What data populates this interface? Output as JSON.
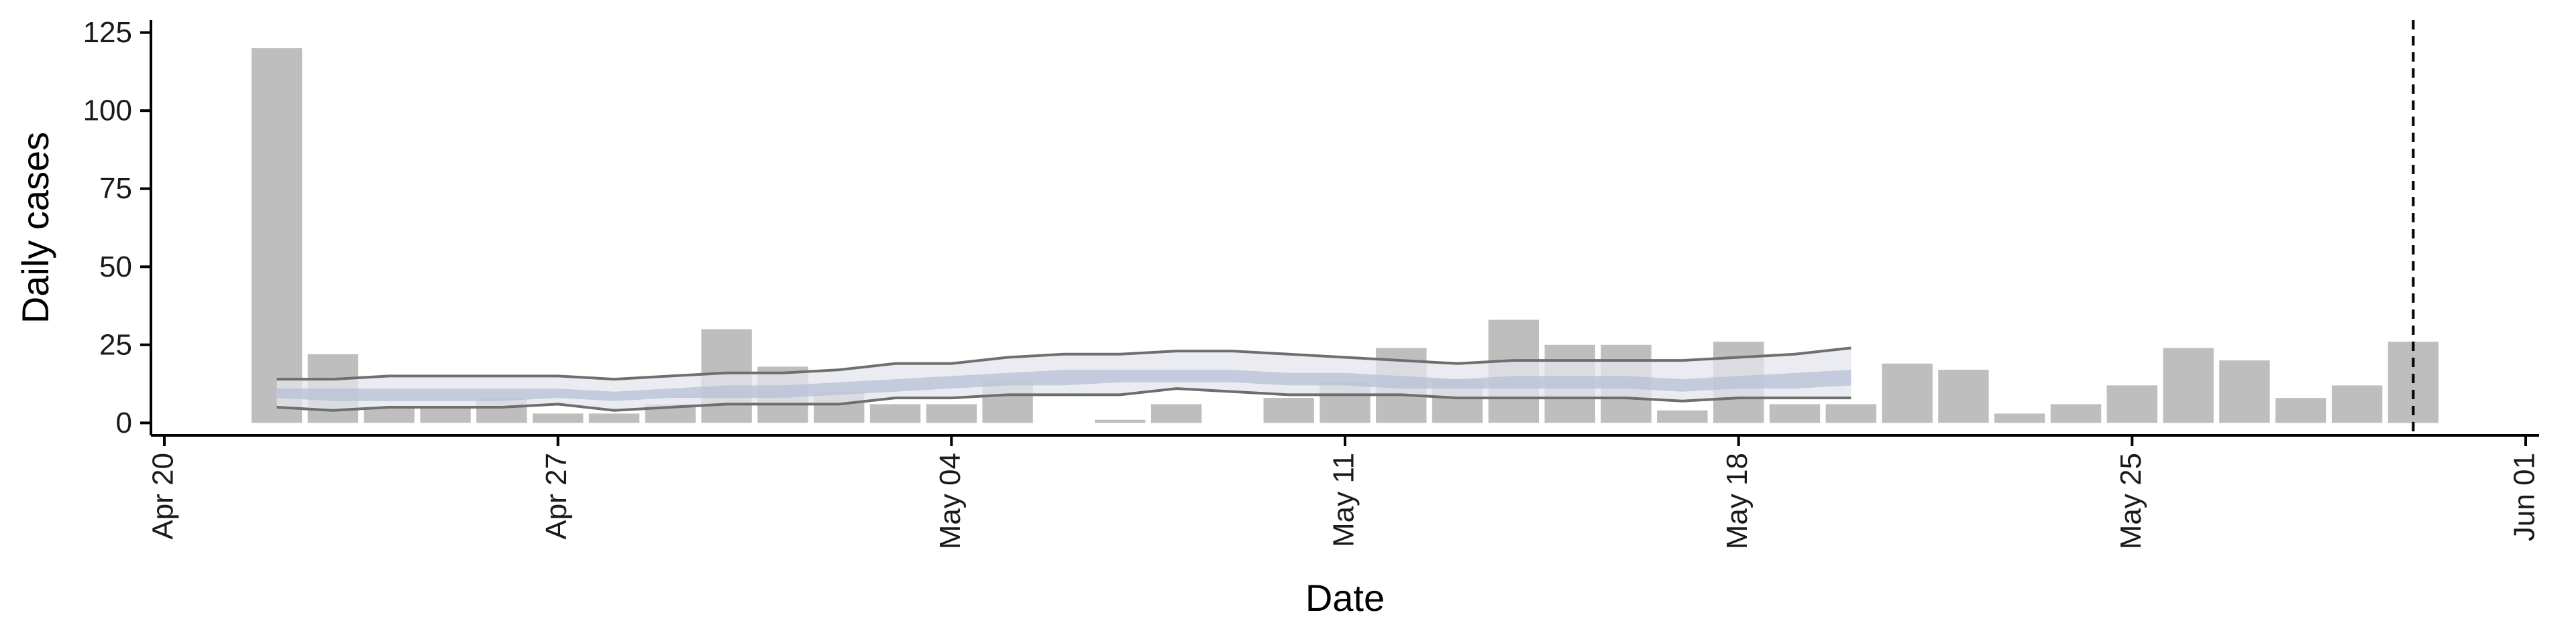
{
  "chart_data": {
    "type": "bar",
    "title": "",
    "xlabel": "Date",
    "ylabel": "Daily cases",
    "x_ticks": [
      "2020-04-20",
      "2020-04-27",
      "2020-05-04",
      "2020-05-11",
      "2020-05-18",
      "2020-05-25",
      "2020-06-01"
    ],
    "x_tick_labels": [
      "Apr 20",
      "Apr 27",
      "May 04",
      "May 11",
      "May 18",
      "May 25",
      "Jun 01"
    ],
    "y_ticks": [
      0,
      25,
      50,
      75,
      100,
      125
    ],
    "y_tick_labels": [
      "0",
      "25",
      "50",
      "75",
      "100",
      "125"
    ],
    "xlim": [
      "2020-04-20",
      "2020-06-01"
    ],
    "ylim": [
      0,
      125
    ],
    "grid": false,
    "legend": "none",
    "dashed_vline_date": "2020-05-30",
    "bars": {
      "dates": [
        "2020-04-22",
        "2020-04-23",
        "2020-04-24",
        "2020-04-25",
        "2020-04-26",
        "2020-04-27",
        "2020-04-28",
        "2020-04-29",
        "2020-04-30",
        "2020-05-01",
        "2020-05-02",
        "2020-05-03",
        "2020-05-04",
        "2020-05-05",
        "2020-05-06",
        "2020-05-07",
        "2020-05-08",
        "2020-05-09",
        "2020-05-10",
        "2020-05-11",
        "2020-05-12",
        "2020-05-13",
        "2020-05-14",
        "2020-05-15",
        "2020-05-16",
        "2020-05-17",
        "2020-05-18",
        "2020-05-19",
        "2020-05-20",
        "2020-05-21",
        "2020-05-22",
        "2020-05-23",
        "2020-05-24",
        "2020-05-25",
        "2020-05-26",
        "2020-05-27",
        "2020-05-28",
        "2020-05-29",
        "2020-05-30"
      ],
      "values": [
        120,
        22,
        5,
        5,
        8,
        3,
        3,
        6,
        30,
        18,
        10,
        6,
        6,
        14,
        0,
        1,
        6,
        0,
        8,
        13,
        24,
        14,
        33,
        25,
        25,
        4,
        26,
        6,
        6,
        19,
        17,
        3,
        6,
        12,
        24,
        20,
        8,
        12,
        26
      ]
    },
    "estimate": {
      "dates": [
        "2020-04-22",
        "2020-04-23",
        "2020-04-24",
        "2020-04-25",
        "2020-04-26",
        "2020-04-27",
        "2020-04-28",
        "2020-04-29",
        "2020-04-30",
        "2020-05-01",
        "2020-05-02",
        "2020-05-03",
        "2020-05-04",
        "2020-05-05",
        "2020-05-06",
        "2020-05-07",
        "2020-05-08",
        "2020-05-09",
        "2020-05-10",
        "2020-05-11",
        "2020-05-12",
        "2020-05-13",
        "2020-05-14",
        "2020-05-15",
        "2020-05-16",
        "2020-05-17",
        "2020-05-18",
        "2020-05-19",
        "2020-05-20"
      ],
      "upper_90": [
        14,
        14,
        15,
        15,
        15,
        15,
        14,
        15,
        16,
        16,
        17,
        19,
        19,
        21,
        22,
        22,
        23,
        23,
        22,
        21,
        20,
        19,
        20,
        20,
        20,
        20,
        21,
        22,
        24
      ],
      "upper_50": [
        11,
        11,
        11,
        11,
        11,
        11,
        10,
        11,
        12,
        12,
        13,
        14,
        15,
        16,
        17,
        17,
        17,
        17,
        16,
        16,
        15,
        14,
        15,
        15,
        15,
        14,
        15,
        16,
        17
      ],
      "lower_50": [
        8,
        7,
        7,
        7,
        7,
        8,
        7,
        8,
        8,
        8,
        9,
        10,
        11,
        12,
        12,
        13,
        13,
        13,
        12,
        12,
        11,
        11,
        11,
        11,
        11,
        10,
        11,
        11,
        12
      ],
      "lower_90": [
        5,
        4,
        5,
        5,
        5,
        6,
        4,
        5,
        6,
        6,
        6,
        8,
        8,
        9,
        9,
        9,
        11,
        10,
        9,
        9,
        9,
        8,
        8,
        8,
        8,
        7,
        8,
        8,
        8
      ]
    },
    "colors": {
      "bars": "#bebebe",
      "band_outer": "#e3e6ee",
      "band_inner": "#b6c0d6",
      "interval_lines": "#6e6e6e",
      "axis": "#000000",
      "vline": "#000000"
    }
  }
}
